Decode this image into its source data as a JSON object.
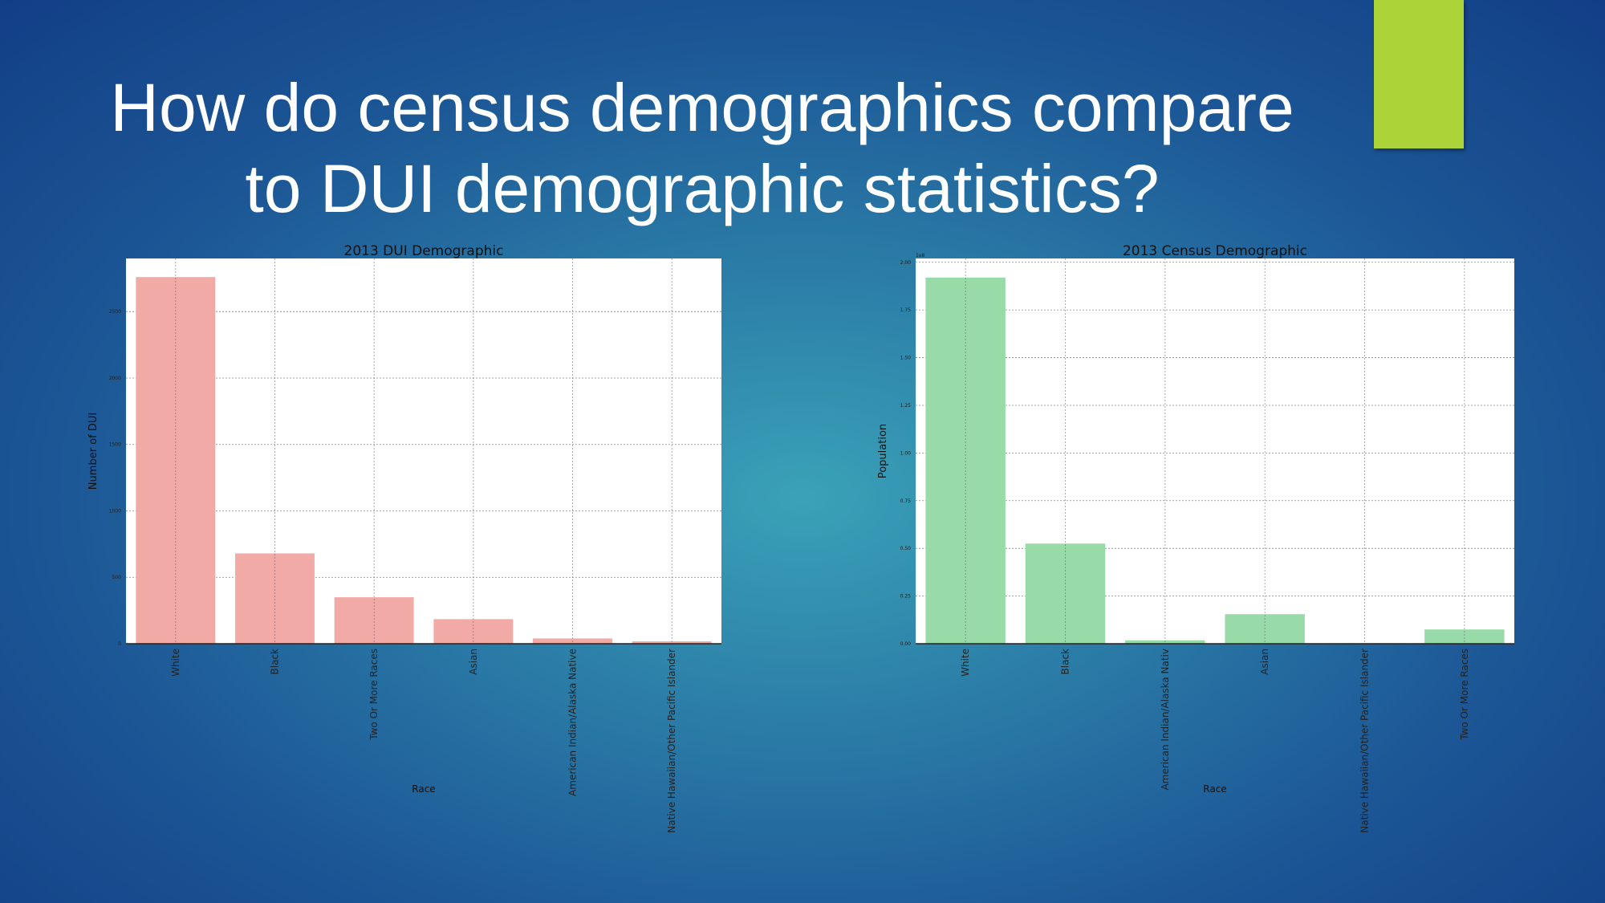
{
  "slide": {
    "title_line1": "How do census demographics compare",
    "title_line2": "to DUI demographic statistics?",
    "accent_color": "#acd338"
  },
  "chart_data": [
    {
      "type": "bar",
      "title": "2013 DUI Demographic",
      "xlabel": "Race",
      "ylabel": "Number of DUI",
      "categories": [
        "White",
        "Black",
        "Two Or More Races",
        "Asian",
        "American Indian/Alaska Native",
        "Native Hawaiian/Other Pacific Islander"
      ],
      "values": [
        2760,
        680,
        350,
        185,
        40,
        18
      ],
      "ylim": [
        0,
        2900
      ],
      "yticks": [
        0,
        500,
        1000,
        1500,
        2000,
        2500
      ],
      "ytick_labels": [
        "0",
        "500",
        "1000",
        "1500",
        "2000",
        "2500"
      ],
      "color": "#f2aaa7",
      "grid": true
    },
    {
      "type": "bar",
      "title": "2013 Census Demographic",
      "xlabel": "Race",
      "ylabel": "Population",
      "offset_label": "1e8",
      "categories": [
        "White",
        "Black",
        "American Indian/Alaska Nativ",
        "Asian",
        "Native Hawaiian/Other Pacific Islander",
        "Two Or More Races"
      ],
      "values": [
        1.92,
        0.525,
        0.018,
        0.155,
        0.003,
        0.075
      ],
      "ylim": [
        0,
        2.02
      ],
      "yticks": [
        0,
        0.25,
        0.5,
        0.75,
        1.0,
        1.25,
        1.5,
        1.75,
        2.0
      ],
      "ytick_labels": [
        "0.00",
        "0.25",
        "0.50",
        "0.75",
        "1.00",
        "1.25",
        "1.50",
        "1.75",
        "2.00"
      ],
      "color": "#99dba8",
      "grid": true
    }
  ]
}
